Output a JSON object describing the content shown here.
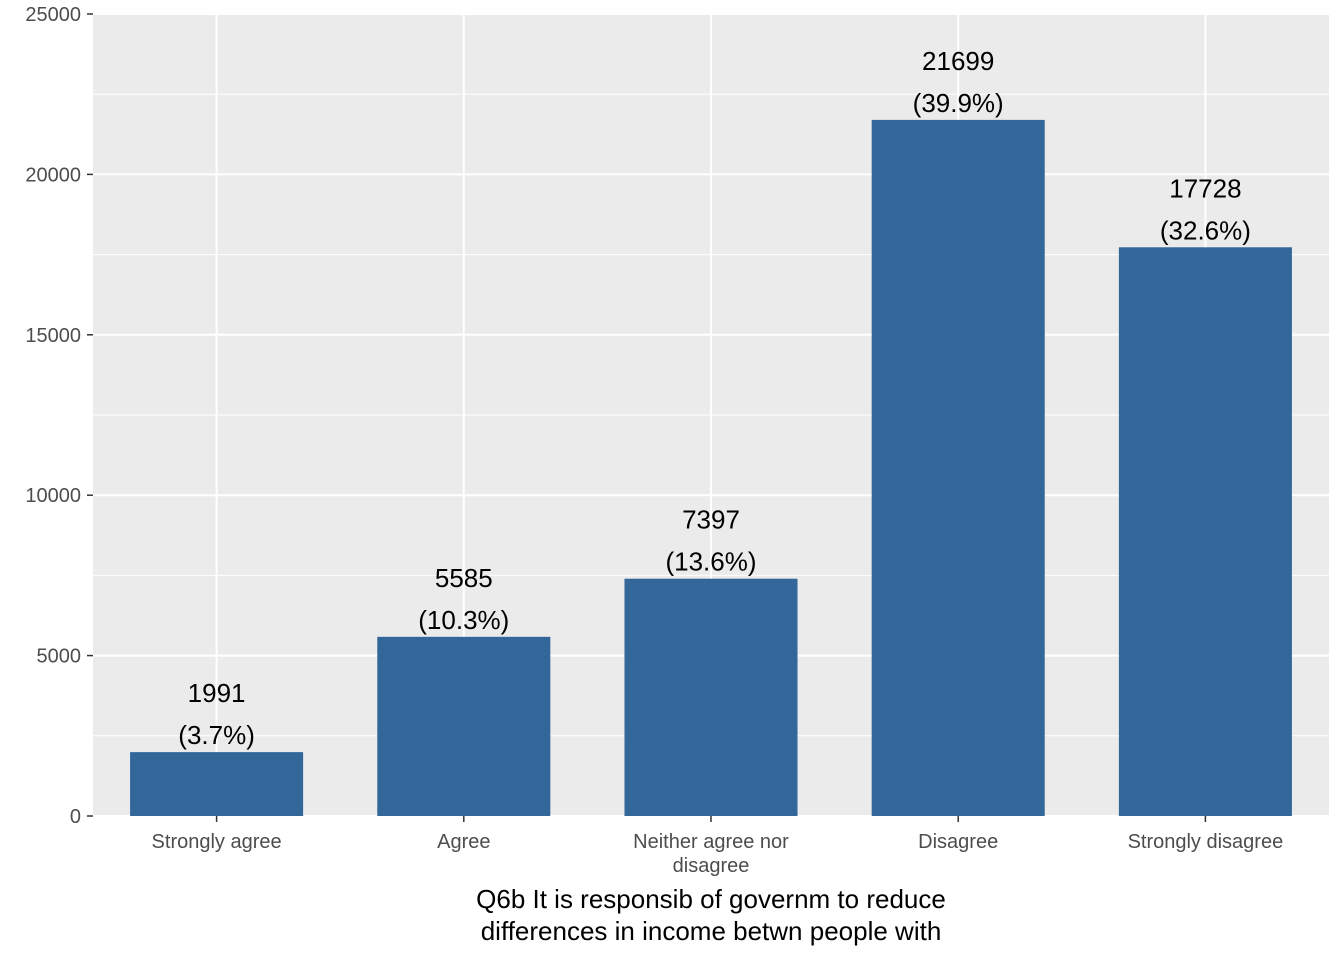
{
  "chart_data": {
    "type": "bar",
    "categories": [
      "Strongly agree",
      "Agree",
      "Neither agree nor disagree",
      "Disagree",
      "Strongly disagree"
    ],
    "category_lines": [
      [
        "Strongly agree"
      ],
      [
        "Agree"
      ],
      [
        "Neither agree nor",
        "disagree"
      ],
      [
        "Disagree"
      ],
      [
        "Strongly disagree"
      ]
    ],
    "values": [
      1991,
      5585,
      7397,
      21699,
      17728
    ],
    "value_labels": [
      "1991",
      "5585",
      "7397",
      "21699",
      "17728"
    ],
    "percent_labels": [
      "(3.7%)",
      "(10.3%)",
      "(13.6%)",
      "(39.9%)",
      "(32.6%)"
    ],
    "title": "",
    "xlabel_lines": [
      "Q6b It is responsib of governm to reduce",
      "differences in income betwn people with"
    ],
    "ylabel": "",
    "ylim": [
      0,
      25000
    ],
    "yticks": [
      0,
      5000,
      10000,
      15000,
      20000,
      25000
    ],
    "ytick_labels": [
      "0",
      "5000",
      "10000",
      "15000",
      "20000",
      "25000"
    ],
    "grid": true,
    "legend": "none",
    "colors": {
      "bar": "#336699",
      "panel": "#ebebeb",
      "grid": "#ffffff",
      "tick": "#333333"
    }
  }
}
